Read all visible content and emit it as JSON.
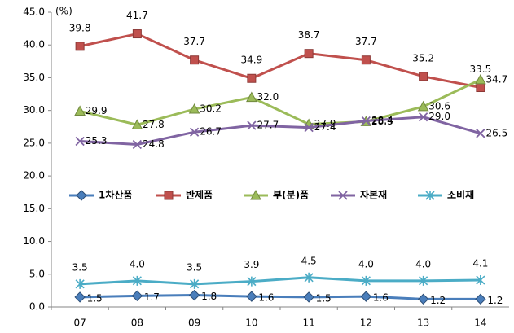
{
  "chart_data": {
    "type": "line",
    "y_unit": "(%)",
    "categories": [
      "07",
      "08",
      "09",
      "10",
      "11",
      "12",
      "13",
      "14"
    ],
    "ylim": [
      0,
      45
    ],
    "yticks": [
      {
        "value": 0,
        "label": "0.0"
      },
      {
        "value": 5,
        "label": "5.0"
      },
      {
        "value": 10,
        "label": "10.0"
      },
      {
        "value": 15,
        "label": "15.0"
      },
      {
        "value": 20,
        "label": "20.0"
      },
      {
        "value": 25,
        "label": "25.0"
      },
      {
        "value": 30,
        "label": "30.0"
      },
      {
        "value": 35,
        "label": "35.0"
      },
      {
        "value": 40,
        "label": "40.0"
      },
      {
        "value": 45,
        "label": "45.0"
      }
    ],
    "legend": "center",
    "series": [
      {
        "name": "1차산품",
        "color": "#4a7ebb",
        "values": [
          1.5,
          1.7,
          1.8,
          1.6,
          1.5,
          1.6,
          1.2,
          1.2
        ],
        "value_labels": [
          "1.5",
          "1.7",
          "1.8",
          "1.6",
          "1.5",
          "1.6",
          "1.2",
          "1.2"
        ]
      },
      {
        "name": "반제품",
        "color": "#c0504d",
        "values": [
          39.8,
          41.7,
          37.7,
          34.9,
          38.7,
          37.7,
          35.2,
          33.5
        ],
        "value_labels": [
          "39.8",
          "41.7",
          "37.7",
          "34.9",
          "38.7",
          "37.7",
          "35.2",
          "33.5"
        ]
      },
      {
        "name": "부(분)품",
        "color": "#9bbb59",
        "values": [
          29.9,
          27.8,
          30.2,
          32.0,
          27.9,
          28.3,
          30.6,
          34.7
        ],
        "value_labels": [
          "29.9",
          "27.8",
          "30.2",
          "32.0",
          "27.9",
          "28.3",
          "30.6",
          "34.7"
        ]
      },
      {
        "name": "자본재",
        "color": "#8064a2",
        "values": [
          25.3,
          24.8,
          26.7,
          27.7,
          27.4,
          28.4,
          29.0,
          26.5
        ],
        "value_labels": [
          "25.3",
          "24.8",
          "26.7",
          "27.7",
          "27.4",
          "28.4",
          "29.0",
          "26.5"
        ]
      },
      {
        "name": "소비재",
        "color": "#4bacc6",
        "values": [
          3.5,
          4.0,
          3.5,
          3.9,
          4.5,
          4.0,
          4.0,
          4.1
        ],
        "value_labels": [
          "3.5",
          "4.0",
          "3.5",
          "3.9",
          "4.5",
          "4.0",
          "4.0",
          "4.1"
        ]
      }
    ]
  }
}
